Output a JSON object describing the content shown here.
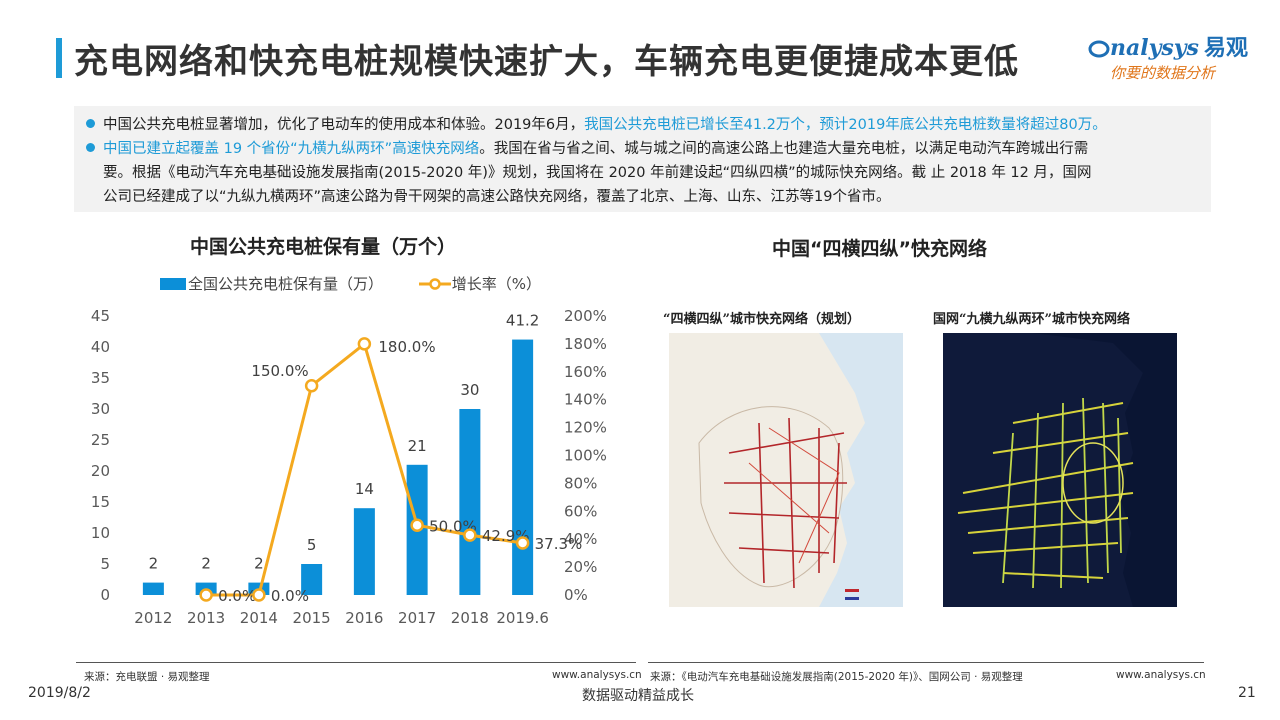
{
  "title": "充电网络和快充电桩规模快速扩大，车辆充电更便捷成本更低",
  "logo": {
    "brand": "nalysys",
    "brand_cn": "易观",
    "slogan": "你要的数据分析"
  },
  "summary": {
    "p1_a": "中国公共充电桩显著增加，优化了电动车的使用成本和体验。2019年6月，",
    "p1_hl": "我国公共充电桩已增长至41.2万个，预计2019年底公共充电桩数量将超过80万。",
    "p2_hl": "中国已建立起覆盖 19 个省份“九横九纵两环”高速快充网络",
    "p2_a": "。我国在省与省之间、城与城之间的高速公路上也建造大量充电桩，以满足电动汽车跨城出行需",
    "p2_b": "要。根据《电动汽车充电基础设施发展指南(2015-2020 年)》规划，我国将在 2020 年前建设起“四纵四横”的城际快充网络。截 止 2018 年 12 月，国网",
    "p2_c": "公司已经建成了以“九纵九横两环”高速公路为骨干网架的高速公路快充网络，覆盖了北京、上海、山东、江苏等19个省市。"
  },
  "chart_data": {
    "type": "bar",
    "title": "中国公共充电桩保有量（万个）",
    "categories": [
      "2012",
      "2013",
      "2014",
      "2015",
      "2016",
      "2017",
      "2018",
      "2019.6"
    ],
    "series": [
      {
        "name": "全国公共充电桩保有量（万）",
        "type": "bar",
        "axis": "left",
        "color": "#0c8fd8",
        "values": [
          2,
          2,
          2,
          5,
          14,
          21,
          30,
          41.2
        ],
        "labels": [
          "2",
          "2",
          "2",
          "5",
          "14",
          "21",
          "30",
          "41.2"
        ]
      },
      {
        "name": "增长率（%）",
        "type": "line",
        "axis": "right",
        "color": "#f4a91f",
        "x": [
          "2013",
          "2014",
          "2015",
          "2016",
          "2017",
          "2018",
          "2019.6"
        ],
        "values": [
          0,
          0,
          150,
          180,
          50,
          42.9,
          37.3
        ],
        "labels": [
          "0.0%",
          "0.0%",
          "150.0%",
          "180.0%",
          "50.0%",
          "42.9%",
          "37.3%"
        ]
      }
    ],
    "y_left": {
      "ylim": [
        0,
        45
      ],
      "ticks": [
        "0",
        "5",
        "10",
        "15",
        "20",
        "25",
        "30",
        "35",
        "40",
        "45"
      ]
    },
    "y_right": {
      "ylim": [
        0,
        200
      ],
      "ticks": [
        "0%",
        "20%",
        "40%",
        "60%",
        "80%",
        "100%",
        "120%",
        "140%",
        "160%",
        "180%",
        "200%"
      ]
    },
    "legend": "top",
    "grid": false
  },
  "map_section": {
    "title": "中国“四横四纵”快充网络",
    "left_caption": "“四横四纵”城市快充网络（规划）",
    "right_caption": "国网“九横九纵两环”城市快充网络"
  },
  "footer": {
    "left_source": "来源：充电联盟 · 易观整理",
    "left_url": "www.analysys.cn",
    "right_source": "来源：《电动汽车充电基础设施发展指南(2015-2020 年)》、国网公司 · 易观整理",
    "right_url": "www.analysys.cn",
    "date": "2019/8/2",
    "tagline": "数据驱动精益成长",
    "page": "21"
  },
  "colors": {
    "accent": "#1e9bd7",
    "bar": "#0c8fd8",
    "line": "#f4a91f",
    "map_dark": "#0f1a3a",
    "map_light": "#f1ede4"
  }
}
